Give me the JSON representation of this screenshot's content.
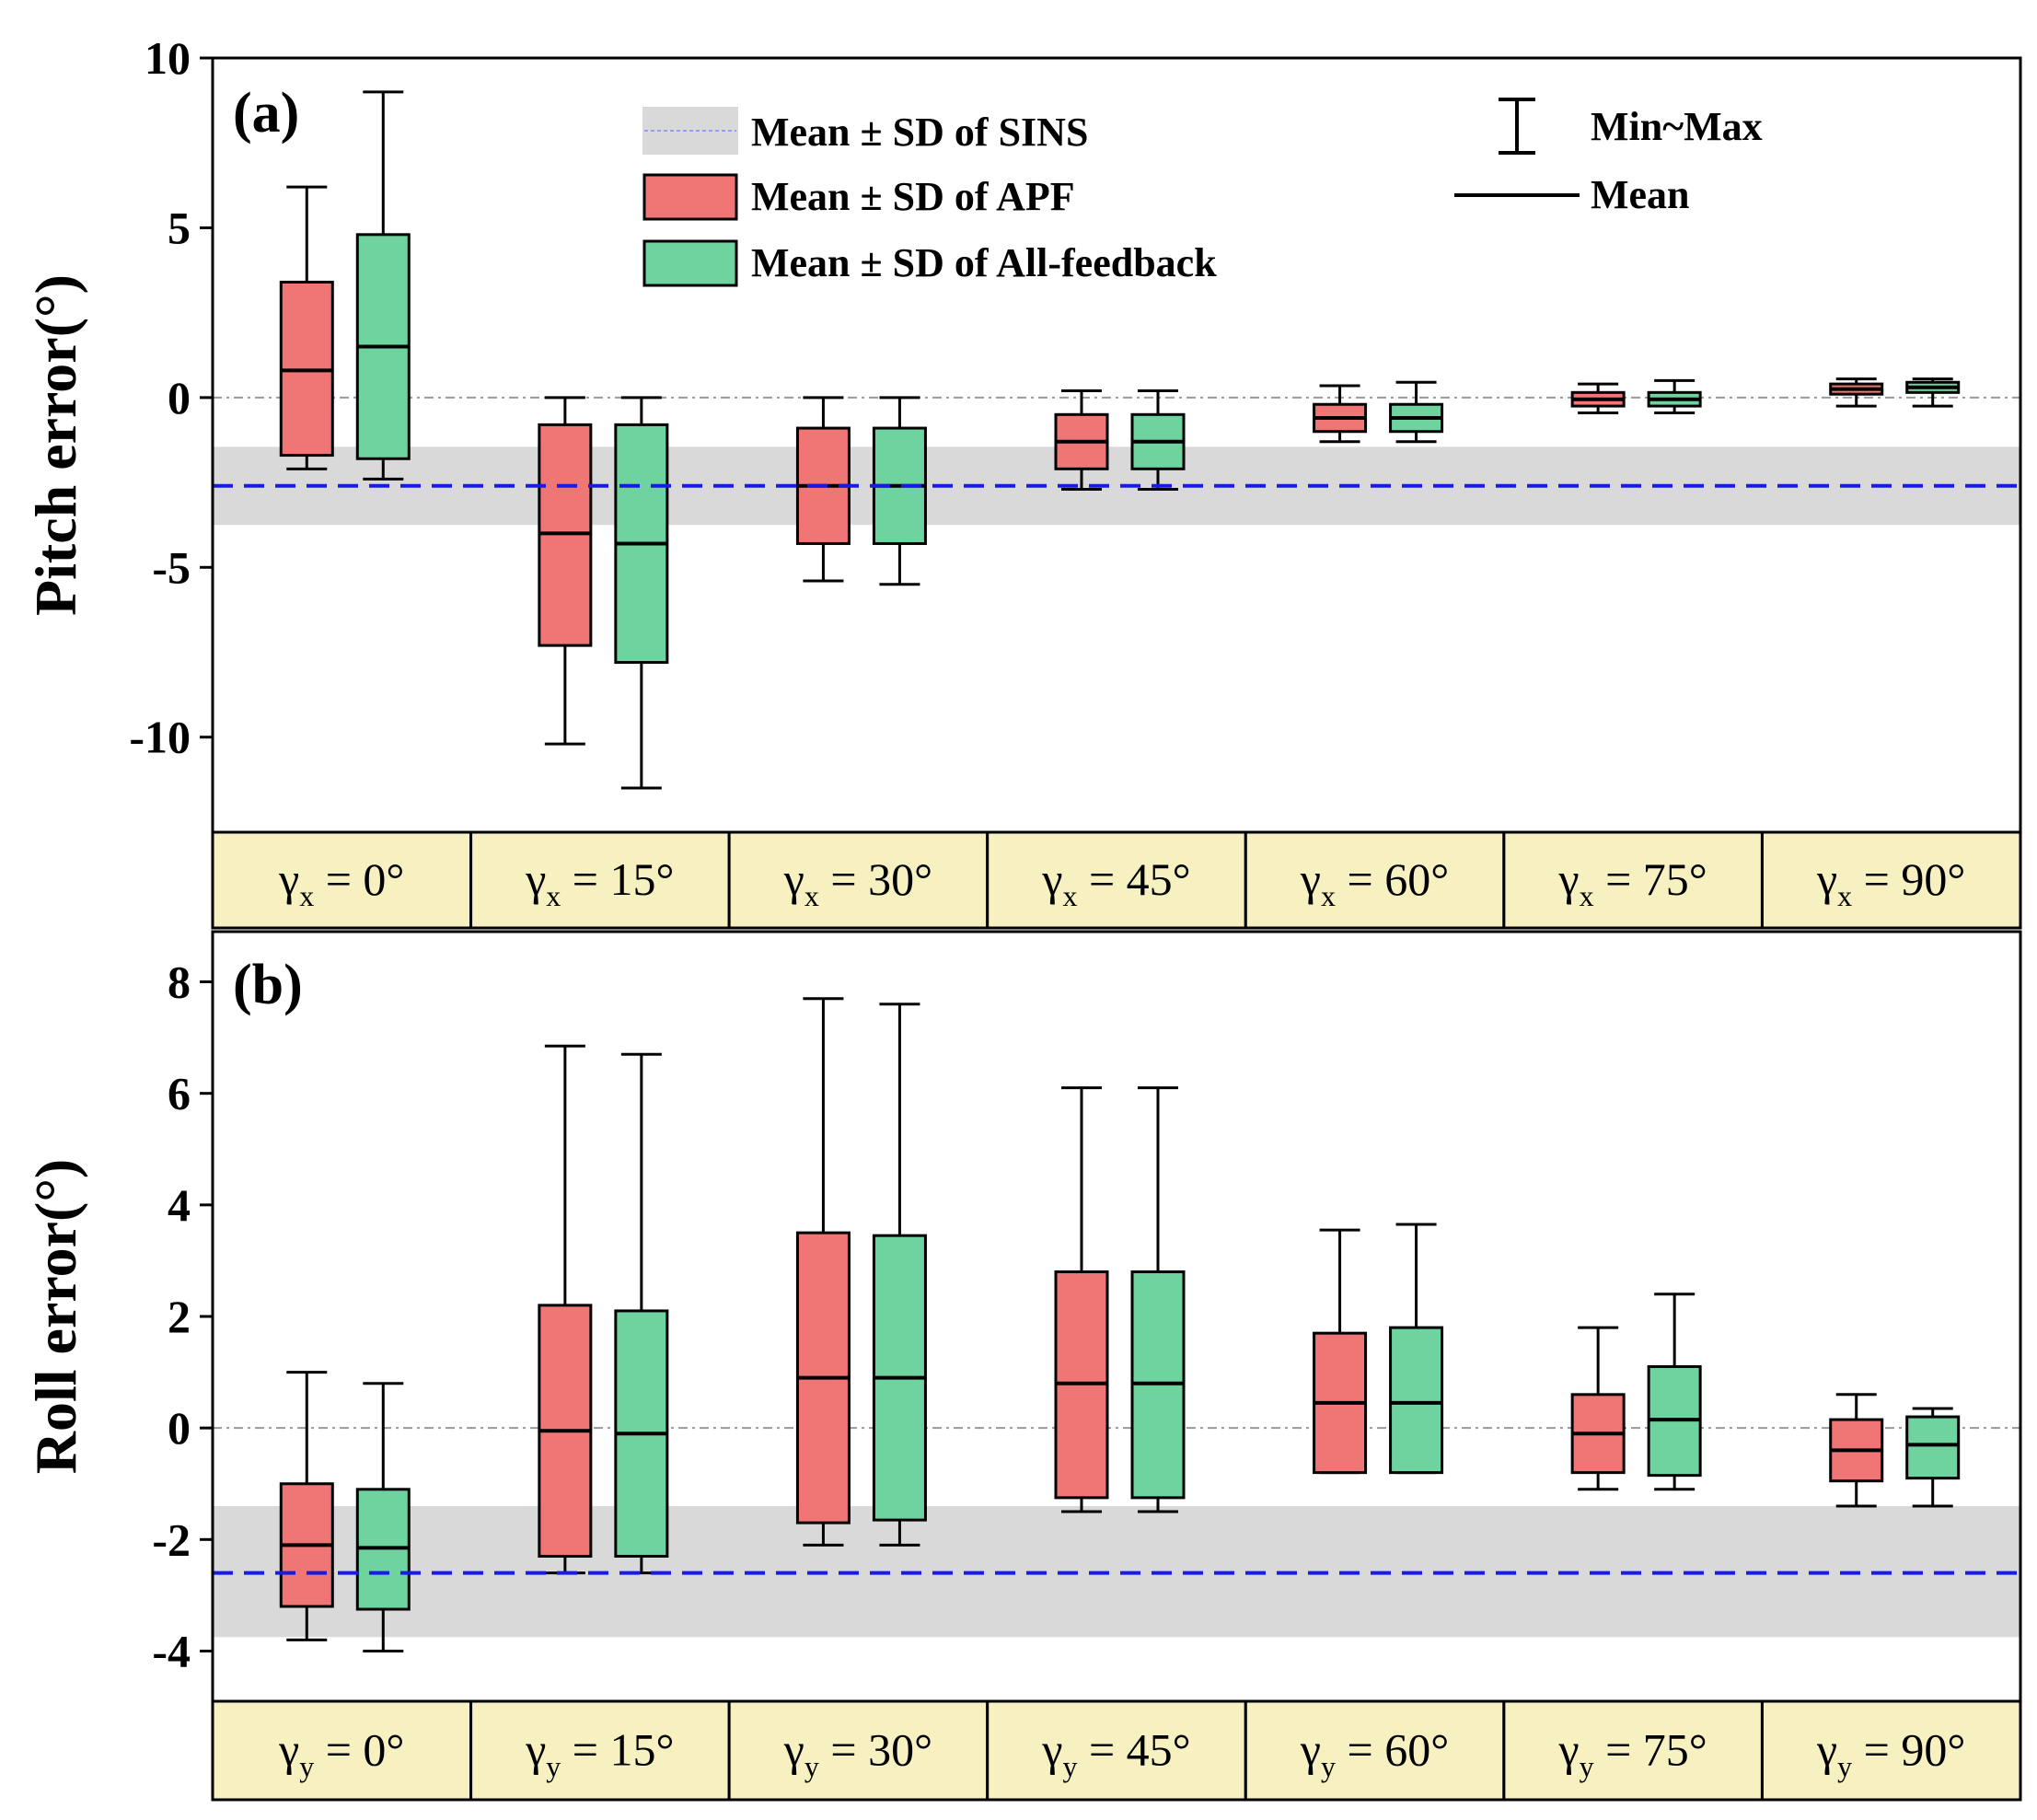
{
  "colors": {
    "apf": "#f07575",
    "all_feedback": "#6fd39f",
    "sins_band": "#d9d9d9",
    "sins_mean_line": "#1a1ae6",
    "category_bg": "#f7f0c0",
    "zero_line": "#999999"
  },
  "legend": {
    "sins": "Mean ± SD of SINS",
    "apf": "Mean ± SD of APF",
    "all_feedback": "Mean ± SD of All-feedback",
    "minmax": "Min~Max",
    "mean": "Mean"
  },
  "chart_data": [
    {
      "type": "box",
      "panel_label": "(a)",
      "ylabel": "Pitch error(°)",
      "ylim": [
        -12.8,
        10
      ],
      "yticks": [
        10,
        5,
        0,
        -5,
        -10
      ],
      "ytick_labels": [
        "10",
        "5",
        "0",
        "-5",
        "-10"
      ],
      "category_symbol": "γ",
      "category_subscript": "x",
      "categories": [
        "0°",
        "15°",
        "30°",
        "45°",
        "60°",
        "75°",
        "90°"
      ],
      "sins": {
        "mean": -2.6,
        "sd_low": -3.75,
        "sd_high": -1.45
      },
      "series": [
        {
          "name": "Mean ± SD of APF",
          "mean": [
            0.8,
            -4.0,
            -2.6,
            -1.3,
            -0.6,
            -0.05,
            0.25
          ],
          "sd_low": [
            -1.7,
            -7.3,
            -4.3,
            -2.1,
            -1.0,
            -0.25,
            0.1
          ],
          "sd_high": [
            3.4,
            -0.8,
            -0.9,
            -0.5,
            -0.2,
            0.15,
            0.4
          ],
          "min": [
            -2.1,
            -10.2,
            -5.4,
            -2.7,
            -1.3,
            -0.45,
            -0.25
          ],
          "max": [
            6.2,
            0.0,
            0.0,
            0.2,
            0.35,
            0.4,
            0.55
          ]
        },
        {
          "name": "Mean ± SD of All-feedback",
          "mean": [
            1.5,
            -4.3,
            -2.6,
            -1.3,
            -0.6,
            -0.05,
            0.3
          ],
          "sd_low": [
            -1.8,
            -7.8,
            -4.3,
            -2.1,
            -1.0,
            -0.25,
            0.15
          ],
          "sd_high": [
            4.8,
            -0.8,
            -0.9,
            -0.5,
            -0.2,
            0.15,
            0.45
          ],
          "min": [
            -2.4,
            -11.5,
            -5.5,
            -2.7,
            -1.3,
            -0.45,
            -0.25
          ],
          "max": [
            9.0,
            0.0,
            0.0,
            0.2,
            0.45,
            0.5,
            0.55
          ]
        }
      ]
    },
    {
      "type": "box",
      "panel_label": "(b)",
      "ylabel": "Roll error(°)",
      "ylim": [
        -4.9,
        8.9
      ],
      "yticks": [
        8,
        6,
        4,
        2,
        0,
        -2,
        -4
      ],
      "ytick_labels": [
        "8",
        "6",
        "4",
        "2",
        "0",
        "-2",
        "-4"
      ],
      "category_symbol": "γ",
      "category_subscript": "y",
      "categories": [
        "0°",
        "15°",
        "30°",
        "45°",
        "60°",
        "75°",
        "90°"
      ],
      "sins": {
        "mean": -2.6,
        "sd_low": -3.75,
        "sd_high": -1.4
      },
      "series": [
        {
          "name": "Mean ± SD of APF",
          "mean": [
            -2.1,
            -0.05,
            0.9,
            0.8,
            0.45,
            -0.1,
            -0.4
          ],
          "sd_low": [
            -3.2,
            -2.3,
            -1.7,
            -1.25,
            -0.8,
            -0.8,
            -0.95
          ],
          "sd_high": [
            -1.0,
            2.2,
            3.5,
            2.8,
            1.7,
            0.6,
            0.15
          ],
          "min": [
            -3.8,
            -2.6,
            -2.1,
            -1.5,
            -0.8,
            -1.1,
            -1.4
          ],
          "max": [
            1.0,
            6.85,
            7.7,
            6.1,
            3.55,
            1.8,
            0.6
          ]
        },
        {
          "name": "Mean ± SD of All-feedback",
          "mean": [
            -2.15,
            -0.1,
            0.9,
            0.8,
            0.45,
            0.15,
            -0.3
          ],
          "sd_low": [
            -3.25,
            -2.3,
            -1.65,
            -1.25,
            -0.8,
            -0.85,
            -0.9
          ],
          "sd_high": [
            -1.1,
            2.1,
            3.45,
            2.8,
            1.8,
            1.1,
            0.2
          ],
          "min": [
            -4.0,
            -2.6,
            -2.1,
            -1.5,
            -0.8,
            -1.1,
            -1.4
          ],
          "max": [
            0.8,
            6.7,
            7.6,
            6.1,
            3.65,
            2.4,
            0.35
          ]
        }
      ]
    }
  ]
}
